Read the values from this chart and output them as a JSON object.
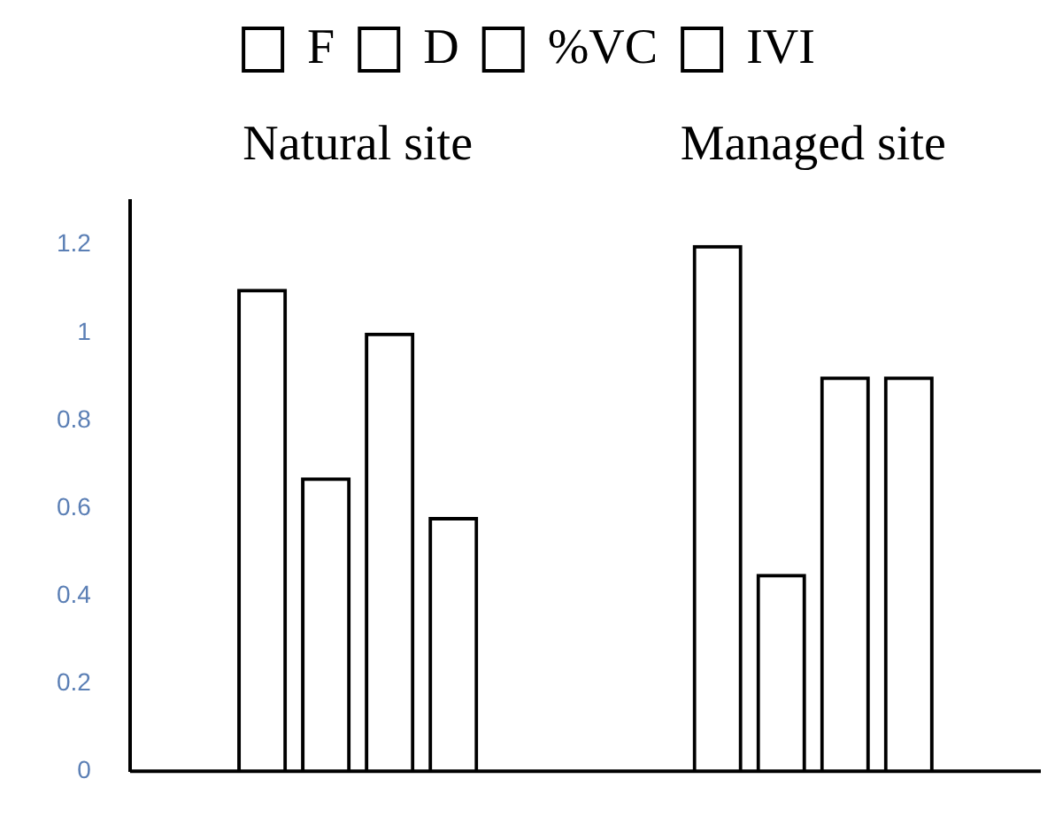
{
  "chart_data": {
    "type": "bar",
    "categories": [
      "Natural site",
      "Managed site"
    ],
    "series": [
      {
        "name": "F",
        "color": "#000000",
        "values": [
          1.1,
          1.2
        ]
      },
      {
        "name": "D",
        "color": "#000000",
        "values": [
          0.67,
          0.45
        ]
      },
      {
        "name": "%VC",
        "color": "#000000",
        "values": [
          1.0,
          0.9
        ]
      },
      {
        "name": "IVI",
        "color": "#000000",
        "values": [
          0.58,
          0.9
        ]
      }
    ],
    "ylim": [
      0,
      1.3
    ],
    "yticks": [
      0,
      0.2,
      0.4,
      0.6,
      0.8,
      1,
      1.2
    ],
    "grid": false,
    "legend": "top"
  }
}
